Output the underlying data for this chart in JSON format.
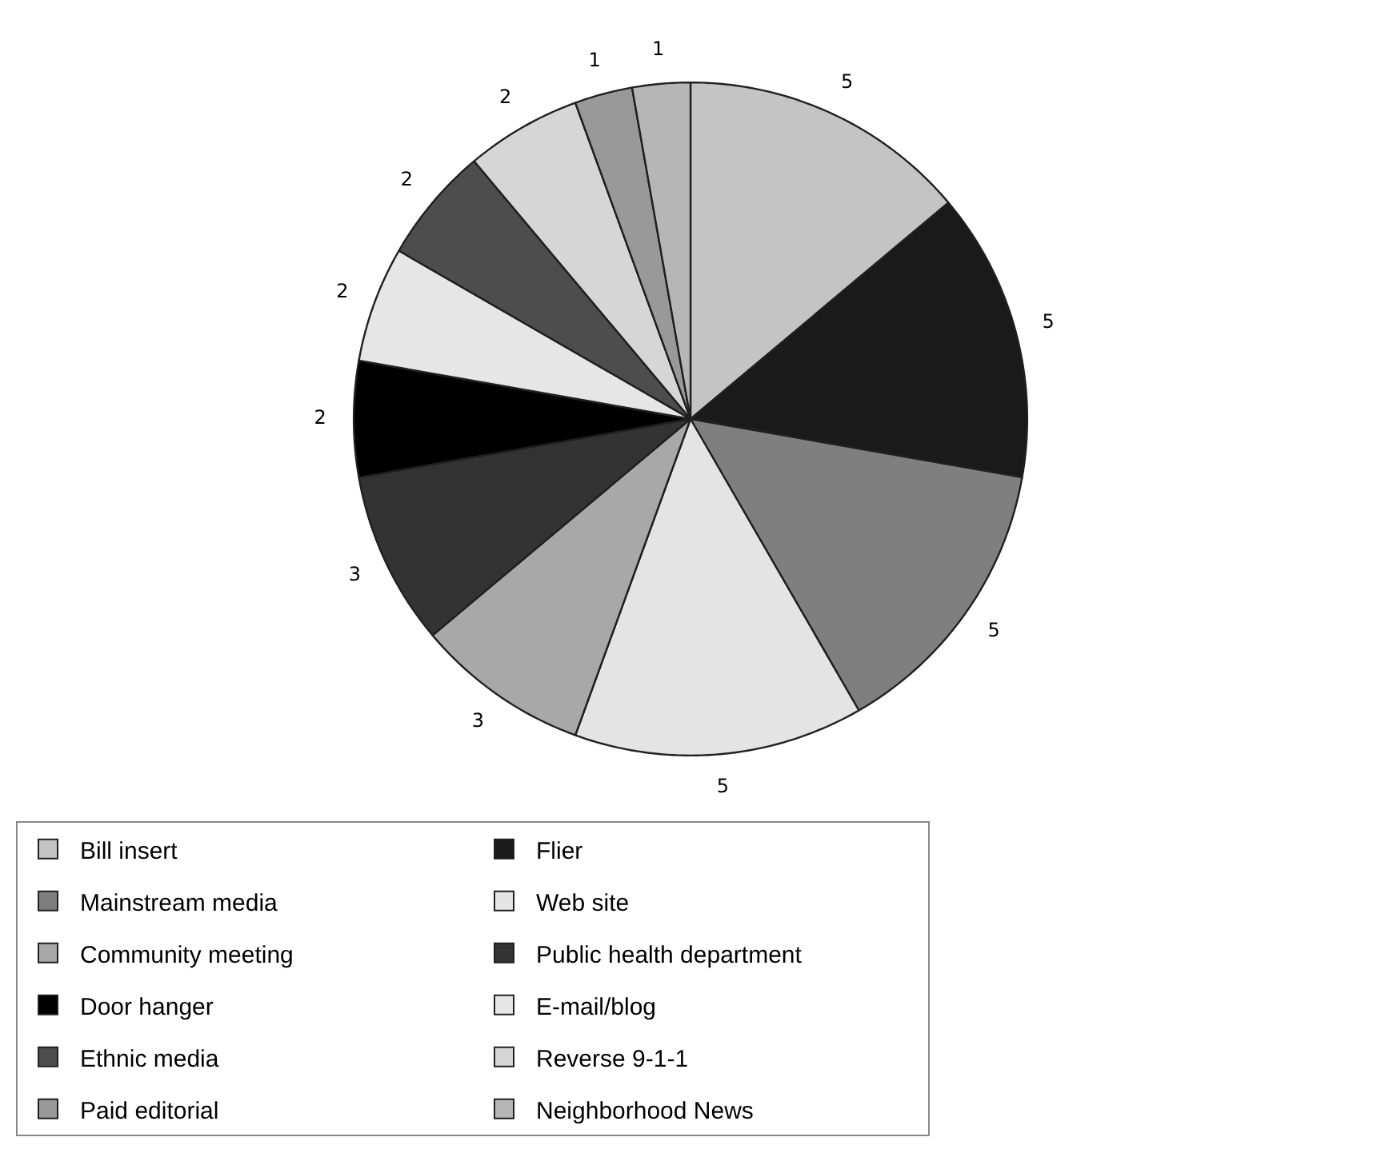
{
  "chart_data": {
    "type": "pie",
    "categories": [
      "Bill insert",
      "Flier",
      "Mainstream media",
      "Web site",
      "Community meeting",
      "Public health department",
      "Door hanger",
      "E-mail/blog",
      "Ethnic media",
      "Reverse 9-1-1",
      "Paid editorial",
      "Neighborhood News"
    ],
    "values": [
      5,
      5,
      5,
      5,
      3,
      3,
      2,
      2,
      2,
      2,
      1,
      1
    ],
    "colors": [
      "#c4c4c4",
      "#1a1a1a",
      "#7f7f7f",
      "#e4e4e4",
      "#a8a8a8",
      "#333333",
      "#000000",
      "#e6e6e6",
      "#4d4d4d",
      "#d6d6d6",
      "#999999",
      "#b6b6b6"
    ],
    "data_labels": true,
    "legend": "bottom"
  }
}
